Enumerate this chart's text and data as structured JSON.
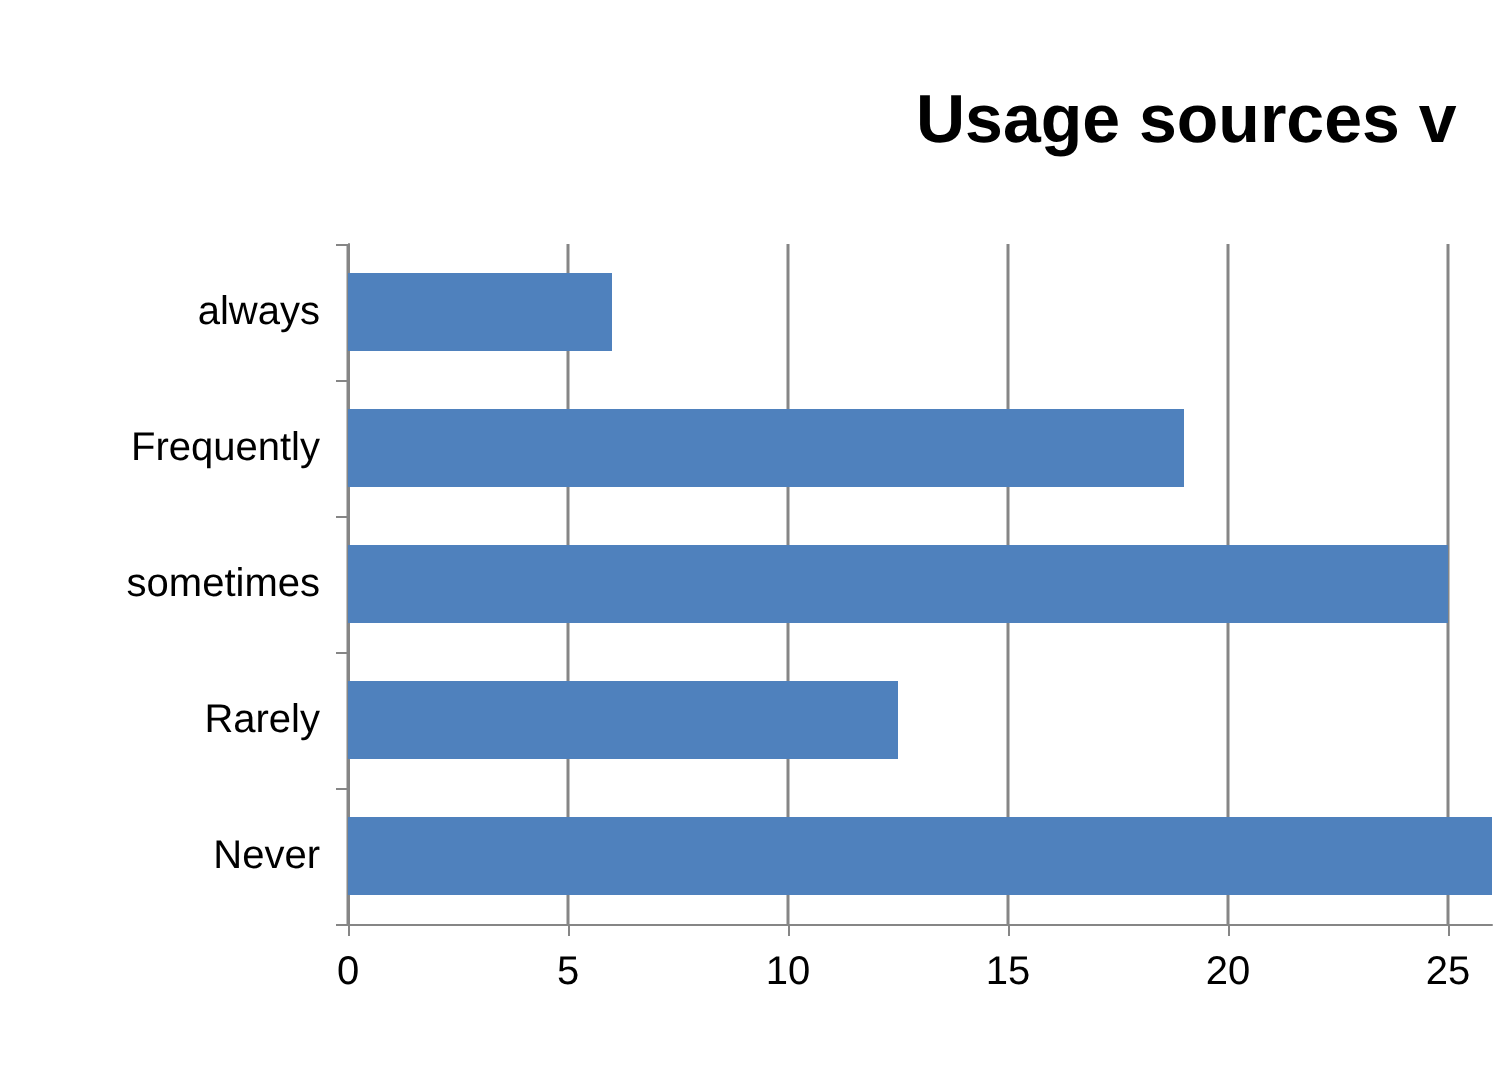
{
  "chart_data": {
    "type": "bar",
    "orientation": "horizontal",
    "title": "Usage sources v",
    "categories": [
      "always",
      "Frequently",
      "sometimes",
      "Rarely",
      "Never"
    ],
    "values": [
      6,
      19,
      25,
      12.5,
      26
    ],
    "color": "#4f81bd",
    "xlim": [
      0,
      26
    ],
    "xticks": [
      0,
      5,
      10,
      15,
      20,
      25
    ],
    "grid": "x"
  }
}
